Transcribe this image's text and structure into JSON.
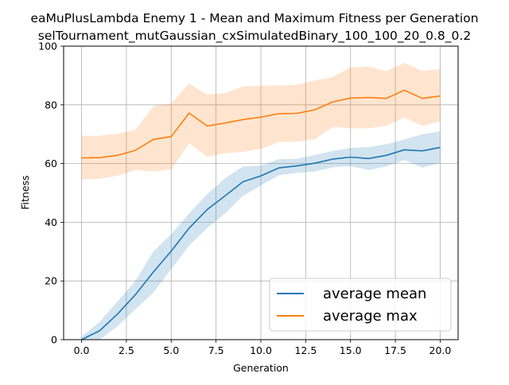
{
  "chart_data": {
    "type": "line",
    "title": "eaMuPlusLambda Enemy 1 - Mean and Maximum Fitness per Generation",
    "subtitle": "selTournament_mutGaussian_cxSimulatedBinary_100_100_20_0.8_0.2",
    "xlabel": "Generation",
    "ylabel": "Fitness",
    "xlim": [
      -1.0,
      21.0
    ],
    "ylim": [
      0,
      100
    ],
    "xticks": [
      0.0,
      2.5,
      5.0,
      7.5,
      10.0,
      12.5,
      15.0,
      17.5,
      20.0
    ],
    "xtick_labels": [
      "0.0",
      "2.5",
      "5.0",
      "7.5",
      "10.0",
      "12.5",
      "15.0",
      "17.5",
      "20.0"
    ],
    "yticks": [
      0,
      20,
      40,
      60,
      80,
      100
    ],
    "ytick_labels": [
      "0",
      "20",
      "40",
      "60",
      "80",
      "100"
    ],
    "grid": true,
    "legend_position": "lower-right",
    "x": [
      0,
      1,
      2,
      3,
      4,
      5,
      6,
      7,
      8,
      9,
      10,
      11,
      12,
      13,
      14,
      15,
      16,
      17,
      18,
      19,
      20
    ],
    "series": [
      {
        "name": "average mean",
        "color": "#1f77b4",
        "band_color": "#1f77b4",
        "values": [
          0,
          3,
          8.7,
          15.3,
          23,
          30.2,
          38,
          44.3,
          49,
          53.8,
          55.8,
          58.5,
          59.2,
          60.1,
          61.5,
          62.2,
          61.7,
          62.8,
          64.7,
          64.3,
          65.5
        ],
        "lower": [
          0,
          0,
          4.5,
          10.3,
          16,
          24,
          32,
          38,
          43,
          49,
          52.5,
          56,
          56.8,
          57.3,
          58.7,
          59.1,
          57.8,
          59,
          61.2,
          58.6,
          60.2
        ],
        "upper": [
          1,
          6,
          13,
          20,
          30,
          36,
          43,
          49.5,
          55,
          59,
          59.3,
          61.5,
          61.6,
          62.9,
          64.3,
          65.3,
          65.6,
          66.6,
          68.2,
          70,
          71
        ]
      },
      {
        "name": "average max",
        "color": "#ff7f0e",
        "band_color": "#ff7f0e",
        "values": [
          61.9,
          62,
          62.8,
          64.5,
          68.2,
          69.2,
          77.2,
          72.8,
          73.8,
          75,
          75.8,
          77,
          77.1,
          78.3,
          81,
          82.3,
          82.5,
          82.2,
          85,
          82.2,
          83
        ],
        "lower": [
          54.6,
          54.8,
          55.8,
          57.8,
          57.2,
          58,
          67,
          62.3,
          63.5,
          64,
          65,
          67.3,
          67.5,
          68.2,
          72.4,
          72,
          72,
          72.8,
          75.7,
          72.8,
          74.3
        ],
        "upper": [
          69.5,
          69.4,
          70.2,
          71.5,
          79.5,
          80.5,
          87.3,
          83.5,
          84,
          86.3,
          86.5,
          86.6,
          86.8,
          88.3,
          89.5,
          92.7,
          93,
          91.5,
          94.3,
          91.6,
          92.2
        ]
      }
    ]
  }
}
